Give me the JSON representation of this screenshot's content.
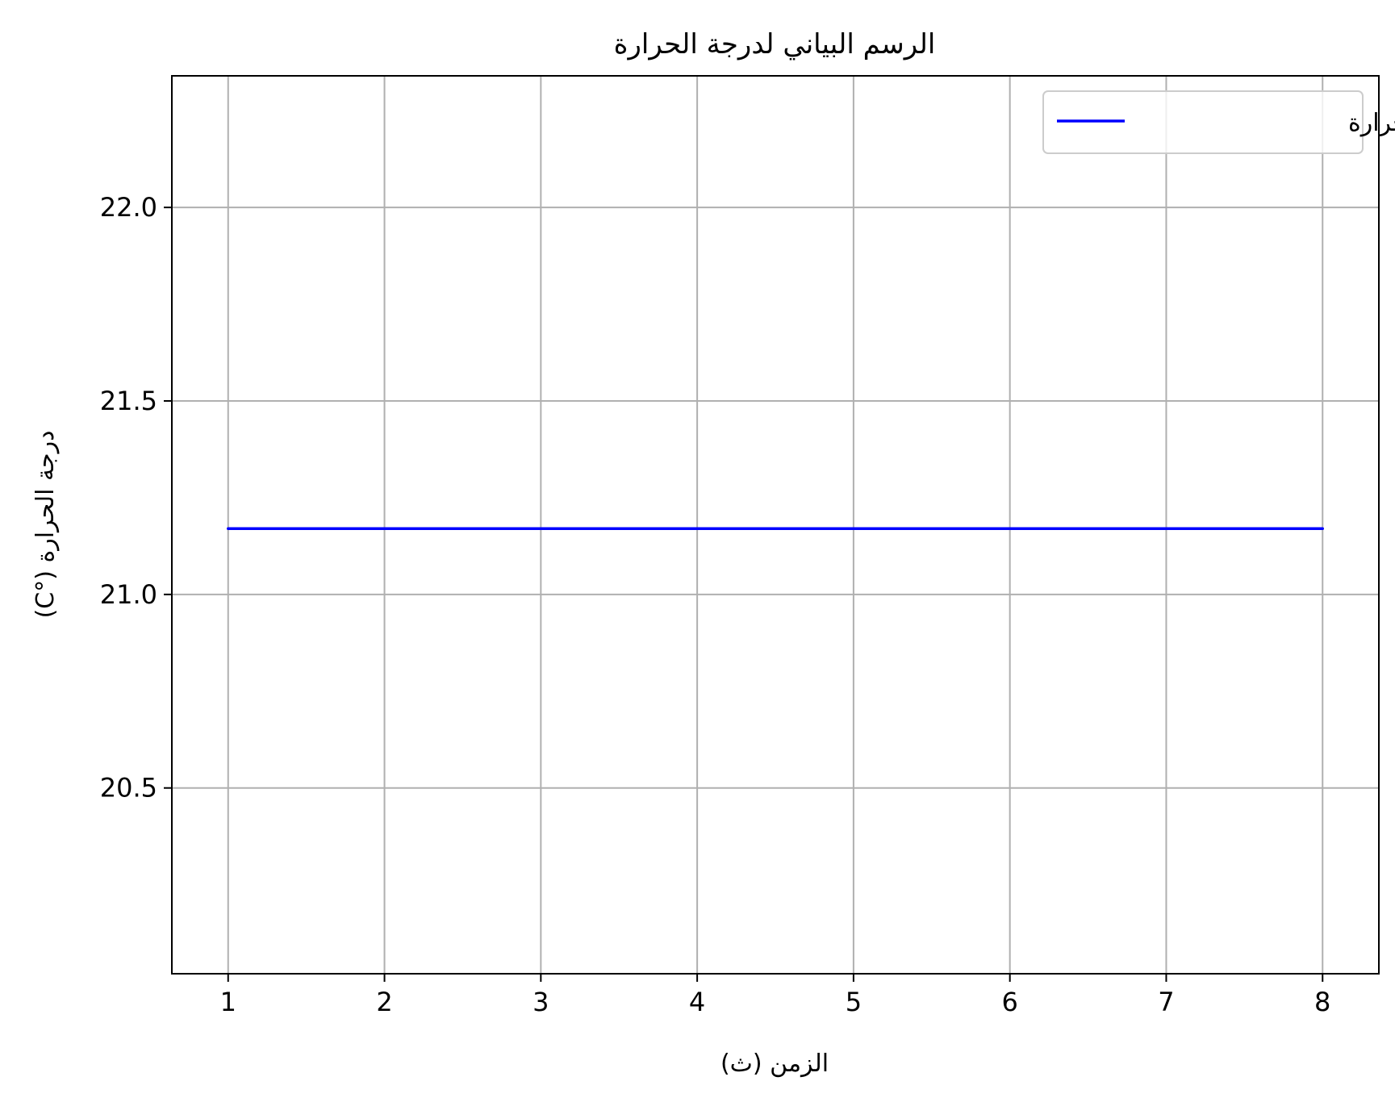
{
  "chart_data": {
    "type": "line",
    "title": "الرسم البياني لدرجة الحرارة",
    "xlabel": "الزمن (ث)",
    "ylabel": "درجة الحرارة (°C)",
    "xlim": [
      0.64,
      8.36
    ],
    "ylim": [
      20.02,
      22.34
    ],
    "xticks": [
      1,
      2,
      3,
      4,
      5,
      6,
      7,
      8
    ],
    "yticks": [
      20.5,
      21.0,
      21.5,
      22.0
    ],
    "ytick_labels": [
      "20.5",
      "21.0",
      "21.5",
      "22.0"
    ],
    "grid": true,
    "legend_position": "top-right",
    "series": [
      {
        "name": "درجة الحرارة",
        "color": "#0000ff",
        "x": [
          1,
          2,
          3,
          4,
          5,
          6,
          7,
          8
        ],
        "y": [
          21.17,
          21.17,
          21.17,
          21.17,
          21.17,
          21.17,
          21.17,
          21.17
        ]
      }
    ]
  }
}
